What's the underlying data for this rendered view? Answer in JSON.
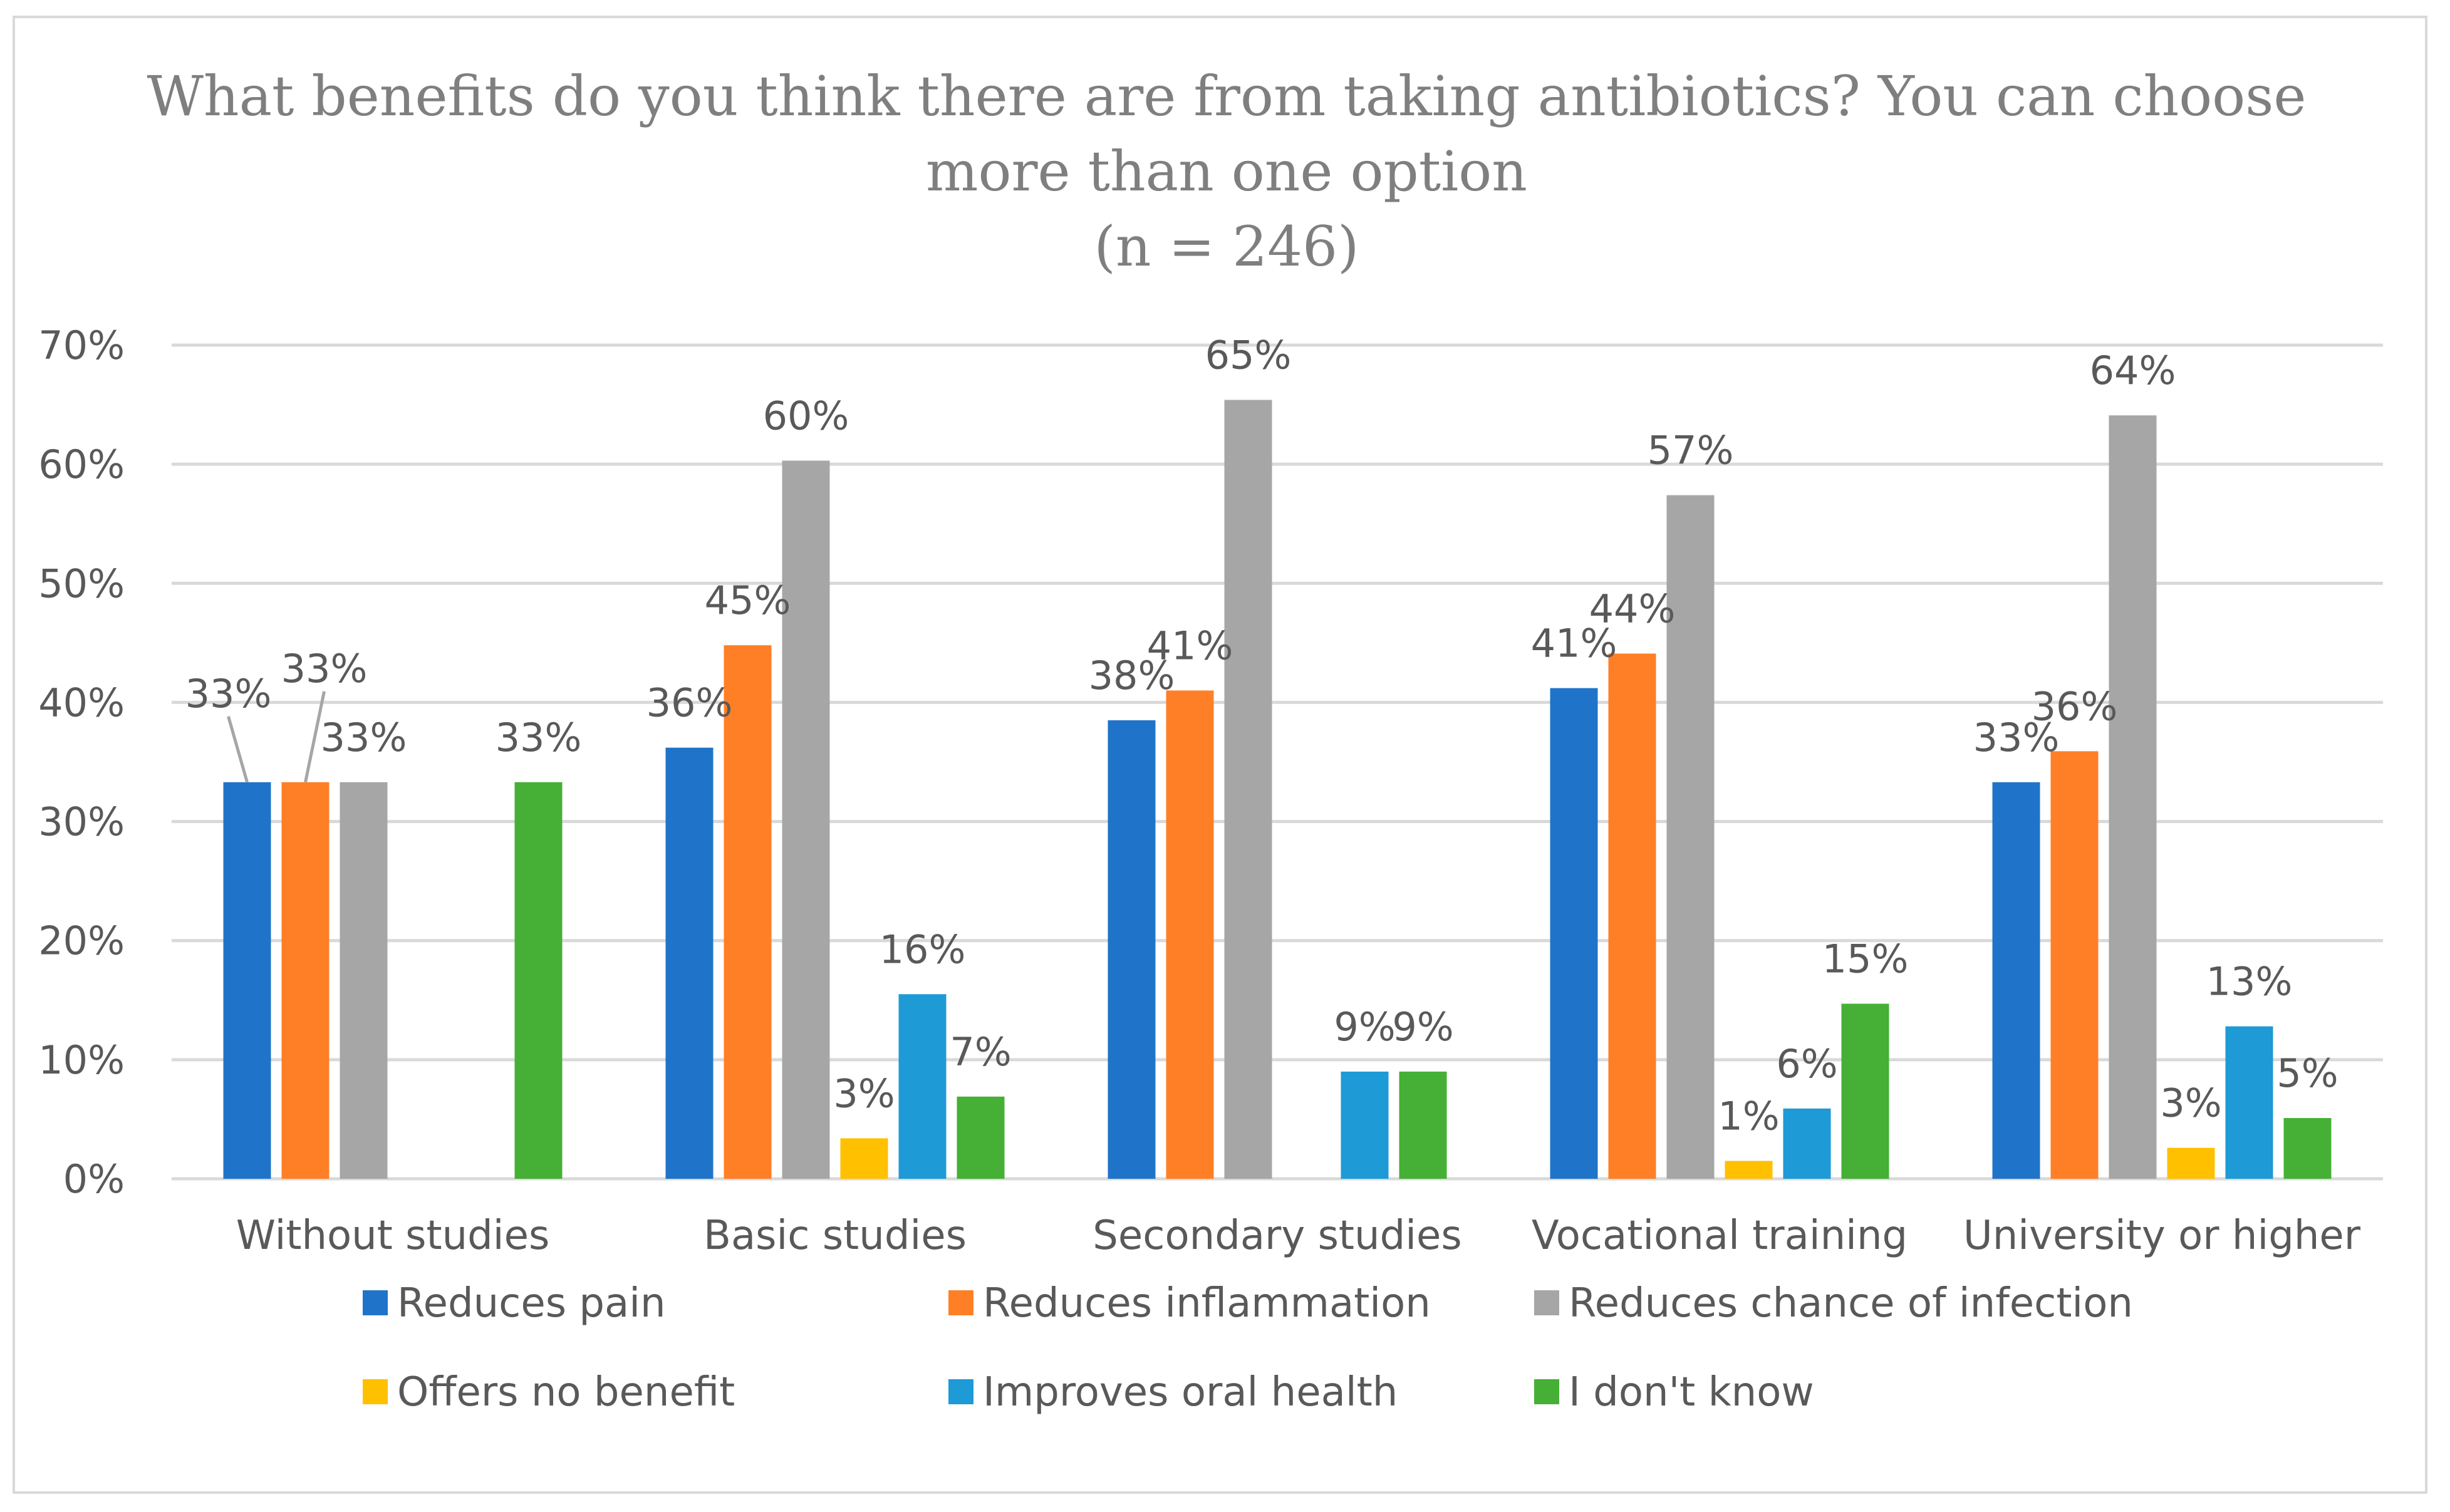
{
  "chart_data": {
    "type": "bar",
    "title_lines": [
      "What benefits do you think there are from taking antibiotics? You can choose",
      "more than one option",
      "(n = 246)"
    ],
    "categories": [
      "Without studies",
      "Basic studies",
      "Secondary studies",
      "Vocational training",
      "University or higher"
    ],
    "series": [
      {
        "name": "Reduces pain",
        "color": "#1f74c9",
        "values": [
          33.3,
          36.2,
          38.5,
          41.2,
          33.3
        ],
        "labels": [
          "33%",
          "36%",
          "38%",
          "41%",
          "33%"
        ]
      },
      {
        "name": "Reduces inflammation",
        "color": "#ff7f27",
        "values": [
          33.3,
          44.8,
          41.0,
          44.1,
          35.9
        ],
        "labels": [
          "33%",
          "45%",
          "41%",
          "44%",
          "36%"
        ]
      },
      {
        "name": "Reduces chance of infection",
        "color": "#a6a6a6",
        "values": [
          33.3,
          60.3,
          65.4,
          57.4,
          64.1
        ],
        "labels": [
          "33%",
          "60%",
          "65%",
          "57%",
          "64%"
        ]
      },
      {
        "name": "Offers no benefit",
        "color": "#ffc000",
        "values": [
          null,
          3.4,
          null,
          1.5,
          2.6
        ],
        "labels": [
          "",
          "3%",
          "",
          "1%",
          "3%"
        ]
      },
      {
        "name": "Improves oral health",
        "color": "#1e9ad6",
        "values": [
          null,
          15.5,
          9.0,
          5.9,
          12.8
        ],
        "labels": [
          "",
          "16%",
          "9%",
          "6%",
          "13%"
        ]
      },
      {
        "name": "I don't know",
        "color": "#45b035",
        "values": [
          33.3,
          6.9,
          9.0,
          14.7,
          5.1
        ],
        "labels": [
          "33%",
          "7%",
          "9%",
          "15%",
          "5%"
        ]
      }
    ],
    "y_ticks": [
      "0%",
      "10%",
      "20%",
      "30%",
      "40%",
      "50%",
      "60%",
      "70%"
    ],
    "ylim": [
      0,
      70
    ],
    "xlabel": "",
    "ylabel": "",
    "grid": true,
    "legend_position": "bottom"
  }
}
